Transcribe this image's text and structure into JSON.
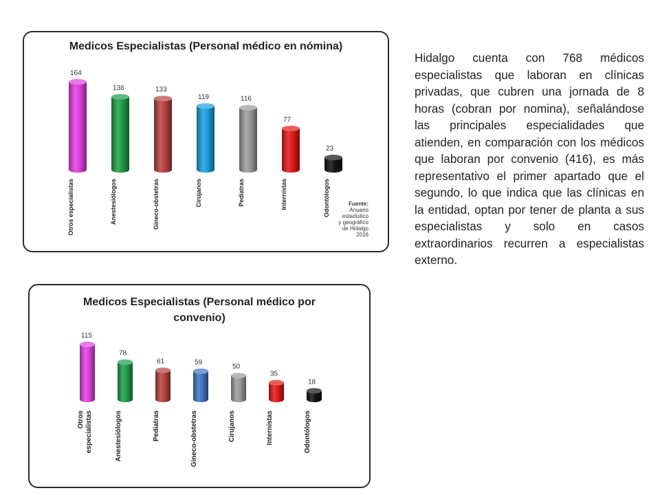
{
  "chart_data": [
    {
      "type": "bar",
      "title": "Medicos Especialistas (Personal médico en nómina)",
      "categories": [
        "Otros especialistas",
        "Anestesiólogos",
        "Gineco-obstetras",
        "Cirujanos",
        "Pediatras",
        "Internistas",
        "Odontólogos"
      ],
      "values": [
        164,
        136,
        133,
        119,
        116,
        77,
        23
      ],
      "colors": [
        "#e040e0",
        "#1f9e48",
        "#b84040",
        "#1aa0e0",
        "#9a9a9a",
        "#e01818",
        "#111111"
      ],
      "ylim": [
        0,
        164
      ],
      "grid": false,
      "legend": "none",
      "source": {
        "label": "Fuente:",
        "lines": [
          "Anuario",
          "estadístico",
          "y geográfico",
          "de Hidalgo",
          "2016"
        ]
      }
    },
    {
      "type": "bar",
      "title": "Medicos Especialistas (Personal médico por convenio)",
      "categories": [
        "Otros especialistas",
        "Anestesiólogos",
        "Pediatras",
        "Gineco-obstetras",
        "Cirujanos",
        "Internistas",
        "Odontólogos"
      ],
      "values": [
        115,
        78,
        61,
        59,
        50,
        35,
        18
      ],
      "colors": [
        "#e040e0",
        "#1f9e48",
        "#b84040",
        "#3f74c0",
        "#9a9a9a",
        "#e01818",
        "#111111"
      ],
      "ylim": [
        0,
        115
      ],
      "grid": false,
      "legend": "none"
    }
  ],
  "text": {
    "paragraph": "Hidalgo cuenta con 768 médicos especialistas que laboran en clínicas privadas, que cubren una jornada de 8 horas (cobran por nomina), señalándose las principales especialidades que atienden, en comparación con los médicos que laboran por convenio (416), es más representativo el primer apartado que el segundo, lo que indica que las clínicas en la entidad, optan por tener de planta a sus especialistas y solo en casos extraordinarios recurren a especialistas externo."
  }
}
